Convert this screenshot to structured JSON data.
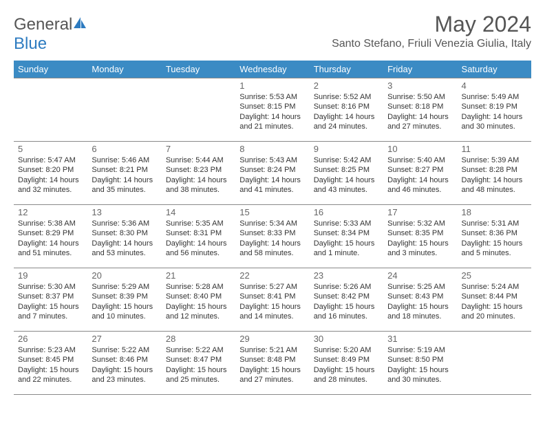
{
  "logo": {
    "name_part1": "General",
    "name_part2": "Blue"
  },
  "title": "May 2024",
  "location": "Santo Stefano, Friuli Venezia Giulia, Italy",
  "colors": {
    "header_bg": "#3b8bc4",
    "header_text": "#ffffff",
    "border": "#888888",
    "logo_gray": "#555555",
    "logo_blue": "#2d7bc0"
  },
  "fonts": {
    "title_size": 32,
    "location_size": 16,
    "dayhead_size": 13,
    "body_size": 11
  },
  "day_headers": [
    "Sunday",
    "Monday",
    "Tuesday",
    "Wednesday",
    "Thursday",
    "Friday",
    "Saturday"
  ],
  "weeks": [
    [
      null,
      null,
      null,
      {
        "n": "1",
        "sr": "Sunrise: 5:53 AM",
        "ss": "Sunset: 8:15 PM",
        "d1": "Daylight: 14 hours",
        "d2": "and 21 minutes."
      },
      {
        "n": "2",
        "sr": "Sunrise: 5:52 AM",
        "ss": "Sunset: 8:16 PM",
        "d1": "Daylight: 14 hours",
        "d2": "and 24 minutes."
      },
      {
        "n": "3",
        "sr": "Sunrise: 5:50 AM",
        "ss": "Sunset: 8:18 PM",
        "d1": "Daylight: 14 hours",
        "d2": "and 27 minutes."
      },
      {
        "n": "4",
        "sr": "Sunrise: 5:49 AM",
        "ss": "Sunset: 8:19 PM",
        "d1": "Daylight: 14 hours",
        "d2": "and 30 minutes."
      }
    ],
    [
      {
        "n": "5",
        "sr": "Sunrise: 5:47 AM",
        "ss": "Sunset: 8:20 PM",
        "d1": "Daylight: 14 hours",
        "d2": "and 32 minutes."
      },
      {
        "n": "6",
        "sr": "Sunrise: 5:46 AM",
        "ss": "Sunset: 8:21 PM",
        "d1": "Daylight: 14 hours",
        "d2": "and 35 minutes."
      },
      {
        "n": "7",
        "sr": "Sunrise: 5:44 AM",
        "ss": "Sunset: 8:23 PM",
        "d1": "Daylight: 14 hours",
        "d2": "and 38 minutes."
      },
      {
        "n": "8",
        "sr": "Sunrise: 5:43 AM",
        "ss": "Sunset: 8:24 PM",
        "d1": "Daylight: 14 hours",
        "d2": "and 41 minutes."
      },
      {
        "n": "9",
        "sr": "Sunrise: 5:42 AM",
        "ss": "Sunset: 8:25 PM",
        "d1": "Daylight: 14 hours",
        "d2": "and 43 minutes."
      },
      {
        "n": "10",
        "sr": "Sunrise: 5:40 AM",
        "ss": "Sunset: 8:27 PM",
        "d1": "Daylight: 14 hours",
        "d2": "and 46 minutes."
      },
      {
        "n": "11",
        "sr": "Sunrise: 5:39 AM",
        "ss": "Sunset: 8:28 PM",
        "d1": "Daylight: 14 hours",
        "d2": "and 48 minutes."
      }
    ],
    [
      {
        "n": "12",
        "sr": "Sunrise: 5:38 AM",
        "ss": "Sunset: 8:29 PM",
        "d1": "Daylight: 14 hours",
        "d2": "and 51 minutes."
      },
      {
        "n": "13",
        "sr": "Sunrise: 5:36 AM",
        "ss": "Sunset: 8:30 PM",
        "d1": "Daylight: 14 hours",
        "d2": "and 53 minutes."
      },
      {
        "n": "14",
        "sr": "Sunrise: 5:35 AM",
        "ss": "Sunset: 8:31 PM",
        "d1": "Daylight: 14 hours",
        "d2": "and 56 minutes."
      },
      {
        "n": "15",
        "sr": "Sunrise: 5:34 AM",
        "ss": "Sunset: 8:33 PM",
        "d1": "Daylight: 14 hours",
        "d2": "and 58 minutes."
      },
      {
        "n": "16",
        "sr": "Sunrise: 5:33 AM",
        "ss": "Sunset: 8:34 PM",
        "d1": "Daylight: 15 hours",
        "d2": "and 1 minute."
      },
      {
        "n": "17",
        "sr": "Sunrise: 5:32 AM",
        "ss": "Sunset: 8:35 PM",
        "d1": "Daylight: 15 hours",
        "d2": "and 3 minutes."
      },
      {
        "n": "18",
        "sr": "Sunrise: 5:31 AM",
        "ss": "Sunset: 8:36 PM",
        "d1": "Daylight: 15 hours",
        "d2": "and 5 minutes."
      }
    ],
    [
      {
        "n": "19",
        "sr": "Sunrise: 5:30 AM",
        "ss": "Sunset: 8:37 PM",
        "d1": "Daylight: 15 hours",
        "d2": "and 7 minutes."
      },
      {
        "n": "20",
        "sr": "Sunrise: 5:29 AM",
        "ss": "Sunset: 8:39 PM",
        "d1": "Daylight: 15 hours",
        "d2": "and 10 minutes."
      },
      {
        "n": "21",
        "sr": "Sunrise: 5:28 AM",
        "ss": "Sunset: 8:40 PM",
        "d1": "Daylight: 15 hours",
        "d2": "and 12 minutes."
      },
      {
        "n": "22",
        "sr": "Sunrise: 5:27 AM",
        "ss": "Sunset: 8:41 PM",
        "d1": "Daylight: 15 hours",
        "d2": "and 14 minutes."
      },
      {
        "n": "23",
        "sr": "Sunrise: 5:26 AM",
        "ss": "Sunset: 8:42 PM",
        "d1": "Daylight: 15 hours",
        "d2": "and 16 minutes."
      },
      {
        "n": "24",
        "sr": "Sunrise: 5:25 AM",
        "ss": "Sunset: 8:43 PM",
        "d1": "Daylight: 15 hours",
        "d2": "and 18 minutes."
      },
      {
        "n": "25",
        "sr": "Sunrise: 5:24 AM",
        "ss": "Sunset: 8:44 PM",
        "d1": "Daylight: 15 hours",
        "d2": "and 20 minutes."
      }
    ],
    [
      {
        "n": "26",
        "sr": "Sunrise: 5:23 AM",
        "ss": "Sunset: 8:45 PM",
        "d1": "Daylight: 15 hours",
        "d2": "and 22 minutes."
      },
      {
        "n": "27",
        "sr": "Sunrise: 5:22 AM",
        "ss": "Sunset: 8:46 PM",
        "d1": "Daylight: 15 hours",
        "d2": "and 23 minutes."
      },
      {
        "n": "28",
        "sr": "Sunrise: 5:22 AM",
        "ss": "Sunset: 8:47 PM",
        "d1": "Daylight: 15 hours",
        "d2": "and 25 minutes."
      },
      {
        "n": "29",
        "sr": "Sunrise: 5:21 AM",
        "ss": "Sunset: 8:48 PM",
        "d1": "Daylight: 15 hours",
        "d2": "and 27 minutes."
      },
      {
        "n": "30",
        "sr": "Sunrise: 5:20 AM",
        "ss": "Sunset: 8:49 PM",
        "d1": "Daylight: 15 hours",
        "d2": "and 28 minutes."
      },
      {
        "n": "31",
        "sr": "Sunrise: 5:19 AM",
        "ss": "Sunset: 8:50 PM",
        "d1": "Daylight: 15 hours",
        "d2": "and 30 minutes."
      },
      null
    ]
  ]
}
